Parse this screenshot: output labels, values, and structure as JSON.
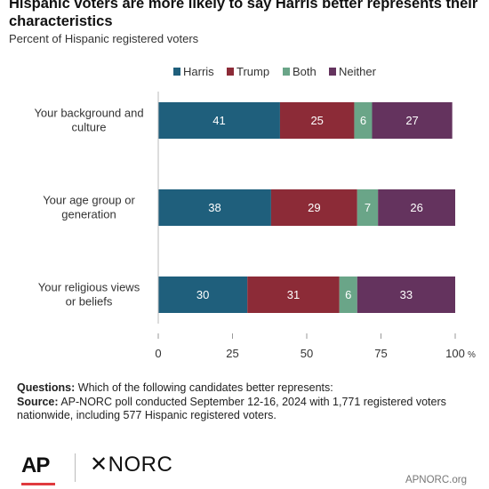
{
  "title": "Hispanic voters are more likely to say Harris better represents their characteristics",
  "subtitle": "Percent of Hispanic registered voters",
  "chart_data": {
    "type": "bar",
    "orientation": "horizontal",
    "stacked": true,
    "categories": [
      "Your background and culture",
      "Your age group or generation",
      "Your religious views or beliefs"
    ],
    "series": [
      {
        "name": "Harris",
        "color": "#1f5f7c",
        "values": [
          41,
          38,
          30
        ]
      },
      {
        "name": "Trump",
        "color": "#8c2b37",
        "values": [
          25,
          29,
          31
        ]
      },
      {
        "name": "Both",
        "color": "#6aa588",
        "values": [
          6,
          7,
          6
        ]
      },
      {
        "name": "Neither",
        "color": "#64335e",
        "values": [
          27,
          26,
          33
        ]
      }
    ],
    "xlim": [
      0,
      100
    ],
    "xticks": [
      0,
      25,
      50,
      75,
      100
    ],
    "xtick_labels": [
      "0",
      "25",
      "50",
      "75",
      "100"
    ],
    "x_unit": "%",
    "legend_position": "top",
    "grid": false
  },
  "notes": {
    "questions_label": "Questions:",
    "questions_text": " Which of the following candidates better represents:",
    "source_label": "Source:",
    "source_text": " AP-NORC poll conducted September 12-16, 2024 with 1,771 registered voters nationwide, including 577 Hispanic registered voters."
  },
  "footer": {
    "ap_logo": "AP",
    "norc_logo": "✕NORC",
    "url": "APNORC.org"
  }
}
